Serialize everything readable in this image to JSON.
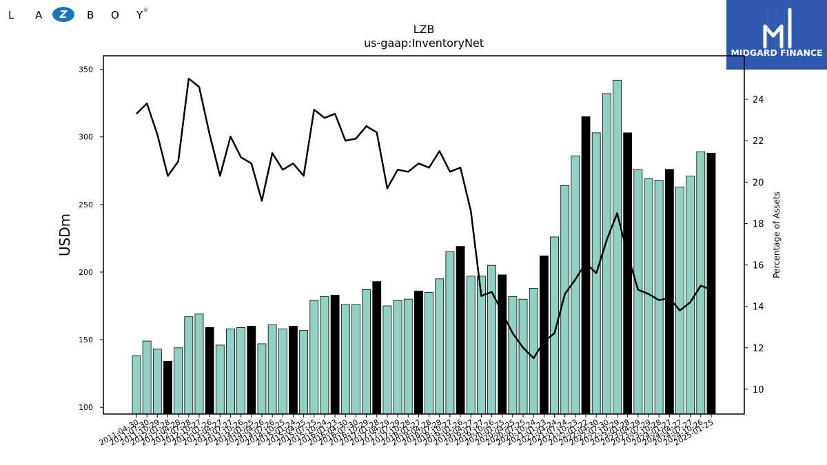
{
  "brand": {
    "logo_text": "L A Z B O Y",
    "logo_letters": [
      "L",
      "A",
      "Z",
      "B",
      "O",
      "Y"
    ],
    "mark": "®"
  },
  "partner": {
    "name": "MIDGARD FINANCE",
    "icon": "midgard-m-icon"
  },
  "chart_data": {
    "type": "bar+line",
    "title": "LZB",
    "subtitle": "us-gaap:InventoryNet",
    "ylabel": "USDm",
    "y2label": "Percentage of Assets",
    "ylim": [
      95,
      360
    ],
    "y2lim": [
      8.8,
      26.1
    ],
    "yticks": [
      100,
      150,
      200,
      250,
      300,
      350
    ],
    "y2ticks": [
      10,
      12,
      14,
      16,
      18,
      20,
      22,
      24
    ],
    "colors": {
      "bar": "#8fd1c3",
      "bar_highlight": "#000000",
      "line": "#000000"
    },
    "categories": [
      "2011-04-30",
      "2011-07-30",
      "2011-10-29",
      "2012-01-28",
      "2012-04-28",
      "2012-07-28",
      "2012-10-27",
      "2013-01-26",
      "2013-04-27",
      "2013-07-27",
      "2013-10-26",
      "2014-01-25",
      "2014-04-26",
      "2014-07-26",
      "2014-10-25",
      "2015-01-24",
      "2015-04-25",
      "2015-07-25",
      "2015-10-24",
      "2016-01-23",
      "2016-04-30",
      "2016-07-30",
      "2016-10-29",
      "2017-01-28",
      "2017-04-29",
      "2017-07-29",
      "2017-10-28",
      "2018-01-27",
      "2018-04-28",
      "2018-07-28",
      "2018-10-27",
      "2019-01-26",
      "2019-04-27",
      "2019-07-27",
      "2019-10-26",
      "2020-01-25",
      "2020-04-25",
      "2020-07-25",
      "2020-10-24",
      "2021-01-23",
      "2021-04-24",
      "2021-07-24",
      "2021-10-23",
      "2022-01-22",
      "2022-04-30",
      "2022-07-30",
      "2022-10-29",
      "2023-01-28",
      "2023-04-29",
      "2023-07-29",
      "2023-10-28",
      "2024-01-27",
      "2024-04-27",
      "2024-07-27",
      "2024-10-26",
      "2025-01-25"
    ],
    "highlight": [
      3,
      7,
      11,
      15,
      19,
      23,
      27,
      31,
      35,
      39,
      43,
      47,
      51,
      55
    ],
    "series": [
      {
        "kind": "bar",
        "values": [
          138,
          149,
          143,
          134,
          144,
          167,
          169,
          159,
          146,
          158,
          159,
          160,
          147,
          161,
          158,
          160,
          157,
          179,
          182,
          183,
          176,
          176,
          187,
          193,
          175,
          179,
          180,
          186,
          185,
          195,
          215,
          219,
          197,
          197,
          205,
          198,
          182,
          180,
          188,
          212,
          226,
          264,
          286,
          315,
          303,
          332,
          342,
          303,
          276,
          269,
          268,
          276,
          263,
          271,
          289,
          288
        ]
      },
      {
        "kind": "line",
        "axis": "y2",
        "values": [
          23.3,
          23.8,
          22.3,
          20.3,
          21.0,
          25.0,
          24.6,
          22.3,
          20.3,
          22.2,
          21.2,
          20.9,
          19.1,
          21.4,
          20.6,
          20.9,
          20.3,
          23.5,
          23.1,
          23.3,
          22.0,
          22.1,
          22.7,
          22.4,
          19.7,
          20.6,
          20.5,
          20.9,
          20.7,
          21.5,
          20.5,
          20.7,
          18.6,
          14.5,
          14.7,
          13.7,
          12.7,
          12.0,
          11.5,
          12.3,
          12.7,
          14.6,
          15.3,
          16.1,
          15.6,
          17.2,
          18.5,
          16.5,
          14.8,
          14.6,
          14.3,
          14.4,
          13.8,
          14.2,
          15.0,
          14.8
        ]
      }
    ]
  }
}
